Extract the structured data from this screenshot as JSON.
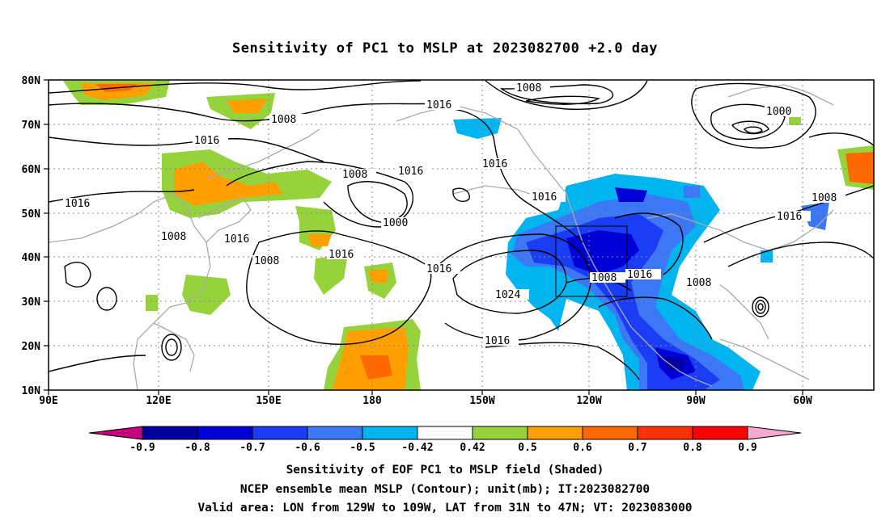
{
  "title": "Sensitivity of PC1 to MSLP at 2023082700 +2.0 day",
  "map": {
    "lat_labels": [
      "80N",
      "70N",
      "60N",
      "50N",
      "40N",
      "30N",
      "20N",
      "10N"
    ],
    "lon_labels": [
      "90E",
      "120E",
      "150E",
      "180",
      "150W",
      "120W",
      "90W",
      "60W"
    ],
    "contour_labels": [
      {
        "text": "1008",
        "x": 1,
        "y": 1
      },
      {
        "text": "1016",
        "x": 1,
        "y": 1
      }
    ],
    "valid_box": {
      "lon_from": "129W",
      "lon_to": "109W",
      "lat_from": "31N",
      "lat_to": "47N"
    }
  },
  "colorbar": {
    "tick_labels": [
      "-0.9",
      "-0.8",
      "-0.7",
      "-0.6",
      "-0.5",
      "-0.42",
      "0.42",
      "0.5",
      "0.6",
      "0.7",
      "0.8",
      "0.9"
    ],
    "colors": [
      "#c6007f",
      "#00009e",
      "#0000d6",
      "#1a3cf5",
      "#3c78f5",
      "#00b4f0",
      "#ffffff",
      "#96d23c",
      "#ff9f00",
      "#ff6a00",
      "#ff3200",
      "#ff0000",
      "#f7a8cf"
    ]
  },
  "captions": [
    "Sensitivity of EOF PC1 to MSLP field (Shaded)",
    "NCEP ensemble mean MSLP (Contour); unit(mb); IT:2023082700",
    "Valid area: LON from 129W to 109W, LAT from 31N to 47N; VT: 2023083000"
  ]
}
